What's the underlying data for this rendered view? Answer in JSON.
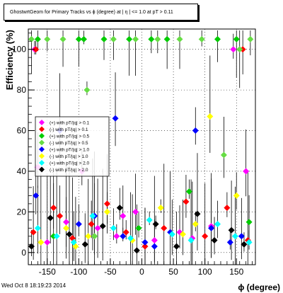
{
  "chart_data": {
    "type": "scatter",
    "title": "GhostwrtGeom for Primary Tracks vs ϕ (degree) at | η | <= 1.0 at pT > 0.11",
    "xlabel": "ϕ (degree)",
    "ylabel": "Efficiency (%)",
    "xlim": [
      -180,
      180
    ],
    "ylim": [
      -6,
      110
    ],
    "xticks": [
      -150,
      -100,
      -50,
      0,
      50,
      100,
      150
    ],
    "yticks": [
      0,
      20,
      40,
      60,
      80,
      100
    ],
    "grid": true,
    "legend_position": "left-middle",
    "series": [
      {
        "name": "(+) with pT/|q| > 0.1",
        "color": "#ff00ff",
        "x": [
          -170,
          -165,
          -120,
          -95,
          -70,
          -40,
          -10,
          20,
          60,
          110,
          145,
          165,
          -150,
          -30,
          80
        ],
        "y": [
          100,
          42,
          15,
          40,
          12,
          8,
          20,
          6,
          10,
          13,
          100,
          40,
          5,
          18,
          7
        ]
      },
      {
        "name": "(-) with pT/|q| > 0.1",
        "color": "#ff0000",
        "x": [
          -172,
          -168,
          -140,
          -110,
          -80,
          -55,
          -25,
          5,
          35,
          70,
          100,
          135,
          160,
          168,
          -130
        ],
        "y": [
          10,
          100,
          22,
          7,
          14,
          24,
          10,
          3,
          12,
          25,
          8,
          22,
          100,
          6,
          18
        ]
      },
      {
        "name": "(+) with pT/|q| > 0.5",
        "color": "#00cc00",
        "x": [
          -165,
          -100,
          -92,
          -60,
          -20,
          15,
          40,
          75,
          120,
          150,
          170,
          -140,
          -5
        ],
        "y": [
          105,
          105,
          105,
          105,
          105,
          105,
          105,
          30,
          105,
          105,
          15,
          8,
          12
        ]
      },
      {
        "name": "(-) with pT/|q| > 0.5",
        "color": "#66dd44",
        "x": [
          -175,
          -150,
          -125,
          -87,
          -45,
          -10,
          25,
          60,
          95,
          130,
          155,
          172,
          -75
        ],
        "y": [
          105,
          105,
          105,
          80,
          105,
          105,
          105,
          105,
          105,
          48,
          100,
          105,
          8
        ]
      },
      {
        "name": "(+) with pT/|q| > 1.0",
        "color": "#0000ff",
        "x": [
          -168,
          -130,
          -100,
          -42,
          -30,
          5,
          45,
          85,
          110,
          140,
          158,
          -75,
          20
        ],
        "y": [
          28,
          60,
          14,
          66,
          8,
          5,
          10,
          60,
          12,
          5,
          8,
          18,
          3
        ]
      },
      {
        "name": "(-) with pT/|q| > 1.0",
        "color": "#ffff00",
        "x": [
          -160,
          -120,
          -85,
          -55,
          -15,
          30,
          65,
          108,
          150,
          -105,
          85
        ],
        "y": [
          5,
          12,
          8,
          20,
          6,
          22,
          9,
          67,
          28,
          3,
          14
        ]
      },
      {
        "name": "(+) with pT/|q| > 2.0",
        "color": "#00ffff",
        "x": [
          -165,
          -135,
          -108,
          -78,
          -45,
          -18,
          12,
          48,
          78,
          120,
          148,
          170
        ],
        "y": [
          12,
          8,
          5,
          18,
          12,
          7,
          16,
          9,
          6,
          14,
          8,
          5
        ]
      },
      {
        "name": "(-) with pT/|q| > 2.0",
        "color": "#000000",
        "x": [
          -175,
          -145,
          -115,
          -90,
          -62,
          -35,
          -8,
          22,
          55,
          88,
          115,
          142,
          162
        ],
        "y": [
          3,
          17,
          9,
          4,
          13,
          22,
          1,
          14,
          3,
          19,
          6,
          11,
          4
        ]
      }
    ]
  },
  "footer": {
    "timestamp": "Wed Oct  8 18:19:23 2014"
  }
}
